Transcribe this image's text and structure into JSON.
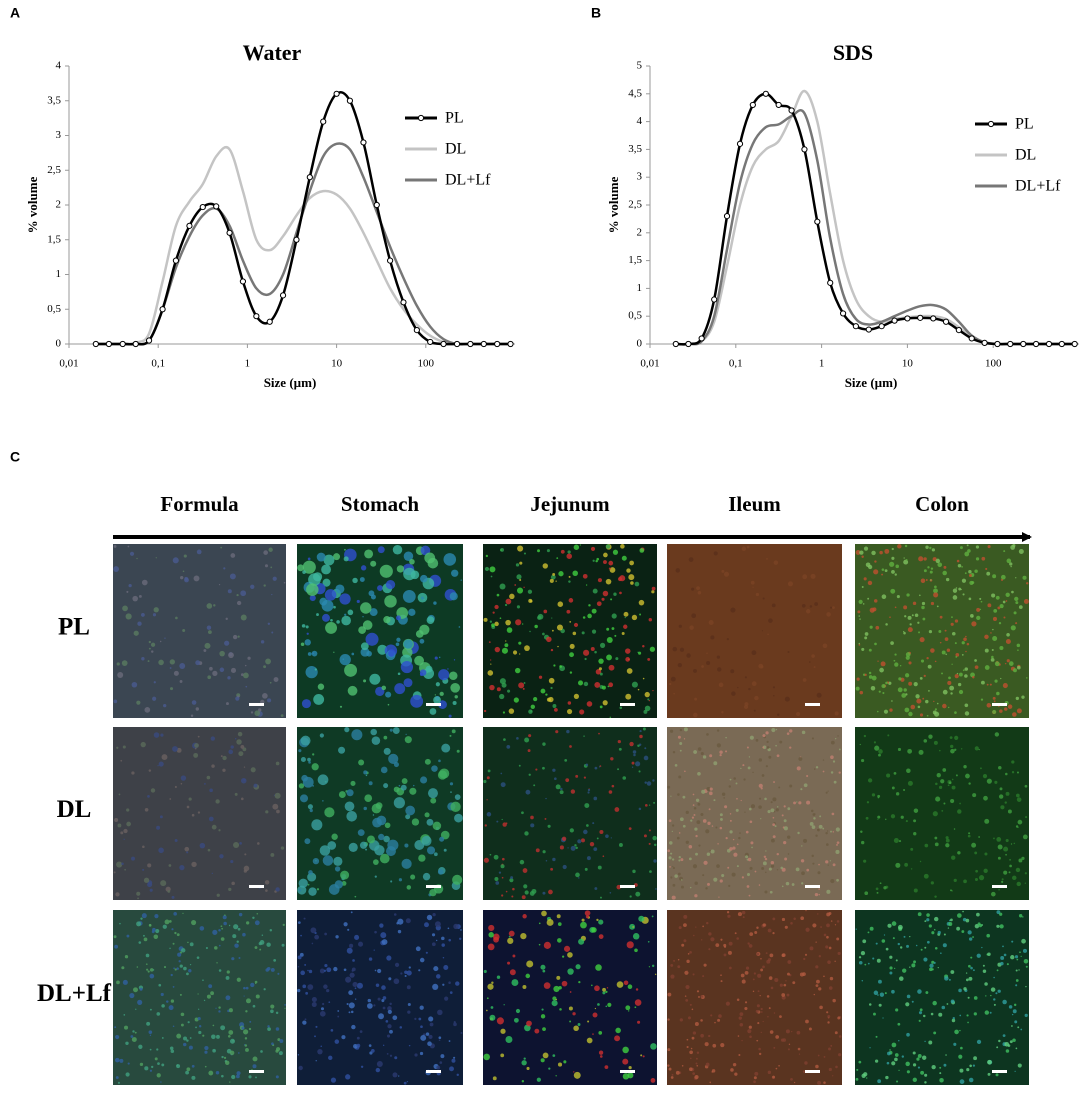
{
  "chart_data": [
    {
      "type": "line",
      "panel_label": "A",
      "title": "Water",
      "x_label": "Size (µm)",
      "y_label": "% volume",
      "log_x": true,
      "legend": "right",
      "xlim": [
        0.01,
        1000
      ],
      "xticks": [
        {
          "value": 0.01,
          "label": "0,01"
        },
        {
          "value": 0.1,
          "label": "0,1"
        },
        1,
        10,
        100
      ],
      "ylim": [
        0,
        4
      ],
      "yticks": [
        0,
        {
          "value": 0.5,
          "label": "0,5"
        },
        1,
        {
          "value": 1.5,
          "label": "1,5"
        },
        2,
        {
          "value": 2.5,
          "label": "2,5"
        },
        3,
        {
          "value": 3.5,
          "label": "3,5"
        },
        4
      ],
      "x": [
        0.02,
        0.028,
        0.04,
        0.056,
        0.079,
        0.112,
        0.158,
        0.224,
        0.316,
        0.447,
        0.631,
        0.891,
        1.26,
        1.78,
        2.51,
        3.55,
        5.01,
        7.08,
        10,
        14.1,
        20,
        28.2,
        39.8,
        56.2,
        79.4,
        112,
        158,
        224,
        316,
        447,
        631,
        891
      ],
      "series": [
        {
          "name": "PL",
          "color": "#000000",
          "markers": true,
          "values": [
            0,
            0,
            0,
            0,
            0.05,
            0.5,
            1.2,
            1.7,
            1.97,
            1.98,
            1.6,
            0.9,
            0.4,
            0.32,
            0.7,
            1.5,
            2.4,
            3.2,
            3.6,
            3.5,
            2.9,
            2.0,
            1.2,
            0.6,
            0.2,
            0.03,
            0,
            0,
            0,
            0,
            0,
            0
          ]
        },
        {
          "name": "DL",
          "color": "#c4c4c4",
          "markers": false,
          "values": [
            0,
            0,
            0,
            0.02,
            0.15,
            0.9,
            1.7,
            2.05,
            2.3,
            2.7,
            2.8,
            2.2,
            1.5,
            1.35,
            1.55,
            1.85,
            2.1,
            2.2,
            2.15,
            1.95,
            1.6,
            1.2,
            0.8,
            0.5,
            0.28,
            0.12,
            0.03,
            0,
            0,
            0,
            0,
            0
          ]
        },
        {
          "name": "DL+Lf",
          "color": "#777777",
          "markers": false,
          "values": [
            0,
            0,
            0,
            0,
            0.05,
            0.5,
            1.1,
            1.55,
            1.85,
            1.95,
            1.7,
            1.2,
            0.8,
            0.72,
            1.0,
            1.6,
            2.2,
            2.7,
            2.88,
            2.8,
            2.4,
            1.9,
            1.4,
            0.95,
            0.55,
            0.25,
            0.07,
            0,
            0,
            0,
            0,
            0
          ]
        }
      ]
    },
    {
      "type": "line",
      "panel_label": "B",
      "title": "SDS",
      "x_label": "Size (µm)",
      "y_label": "% volume",
      "log_x": true,
      "legend": "right",
      "xlim": [
        0.01,
        1000
      ],
      "xticks": [
        {
          "value": 0.01,
          "label": "0,01"
        },
        {
          "value": 0.1,
          "label": "0,1"
        },
        1,
        10,
        100
      ],
      "ylim": [
        0,
        5
      ],
      "yticks": [
        0,
        {
          "value": 0.5,
          "label": "0,5"
        },
        1,
        {
          "value": 1.5,
          "label": "1,5"
        },
        2,
        {
          "value": 2.5,
          "label": "2,5"
        },
        3,
        {
          "value": 3.5,
          "label": "3,5"
        },
        4,
        {
          "value": 4.5,
          "label": "4,5"
        },
        5
      ],
      "x": [
        0.02,
        0.028,
        0.04,
        0.056,
        0.079,
        0.112,
        0.158,
        0.224,
        0.316,
        0.447,
        0.631,
        0.891,
        1.26,
        1.78,
        2.51,
        3.55,
        5.01,
        7.08,
        10,
        14.1,
        20,
        28.2,
        39.8,
        56.2,
        79.4,
        112,
        158,
        224,
        316,
        447,
        631,
        891
      ],
      "series": [
        {
          "name": "PL",
          "color": "#000000",
          "markers": true,
          "values": [
            0,
            0,
            0.1,
            0.8,
            2.3,
            3.6,
            4.3,
            4.5,
            4.3,
            4.2,
            3.5,
            2.2,
            1.1,
            0.55,
            0.32,
            0.26,
            0.32,
            0.42,
            0.46,
            0.47,
            0.46,
            0.4,
            0.25,
            0.1,
            0.02,
            0,
            0,
            0,
            0,
            0,
            0,
            0
          ]
        },
        {
          "name": "DL",
          "color": "#c4c4c4",
          "markers": false,
          "values": [
            0,
            0,
            0.05,
            0.4,
            1.4,
            2.5,
            3.2,
            3.5,
            3.65,
            4.1,
            4.55,
            4.0,
            2.7,
            1.5,
            0.8,
            0.5,
            0.4,
            0.45,
            0.48,
            0.5,
            0.5,
            0.45,
            0.3,
            0.12,
            0.03,
            0,
            0,
            0,
            0,
            0,
            0,
            0
          ]
        },
        {
          "name": "DL+Lf",
          "color": "#777777",
          "markers": false,
          "values": [
            0,
            0,
            0.05,
            0.5,
            1.7,
            2.9,
            3.6,
            3.9,
            3.95,
            4.1,
            4.15,
            3.3,
            1.9,
            0.9,
            0.45,
            0.35,
            0.4,
            0.5,
            0.6,
            0.68,
            0.7,
            0.62,
            0.4,
            0.15,
            0.03,
            0,
            0,
            0,
            0,
            0,
            0,
            0
          ]
        }
      ]
    }
  ],
  "panel_c": {
    "label": "C",
    "columns": [
      "Formula",
      "Stomach",
      "Jejunum",
      "Ileum",
      "Colon"
    ],
    "rows": [
      "PL",
      "DL",
      "DL+Lf"
    ]
  }
}
